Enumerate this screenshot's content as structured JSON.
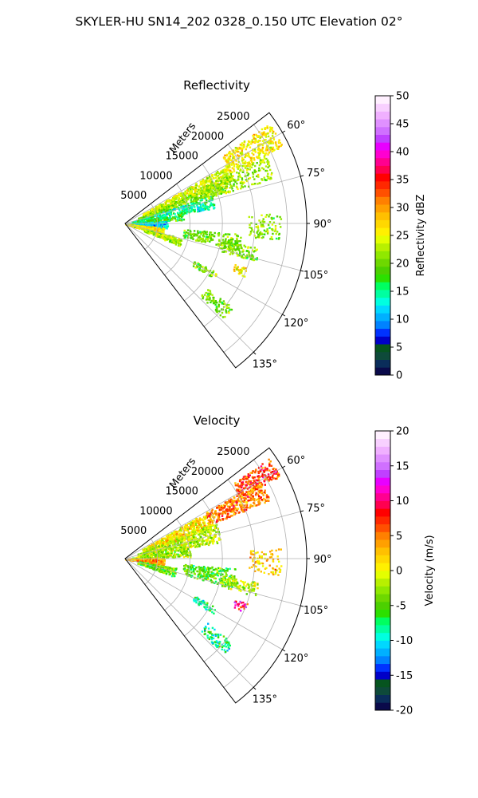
{
  "figure": {
    "suptitle": "SKYLER-HU  SN14_202  0328_0.150 UTC Elevation 02°"
  },
  "chart_data": [
    {
      "type": "polar-sector-radar",
      "title": "Reflectivity",
      "radial_axis_label": "Meters",
      "radial_ticks": [
        "5000",
        "10000",
        "15000",
        "20000",
        "25000"
      ],
      "radial_tick_values": [
        5000,
        10000,
        15000,
        20000,
        25000
      ],
      "r_max": 28000,
      "azimuth_range_deg": [
        52.5,
        142.5
      ],
      "azimuth_ticks": [
        "60°",
        "75°",
        "90°",
        "105°",
        "120°",
        "135°"
      ],
      "azimuth_tick_values": [
        60,
        75,
        90,
        105,
        120,
        135
      ],
      "grid": true,
      "colorbar": {
        "label": "Reflectivity dBZ",
        "vmin": 0,
        "vmax": 50,
        "ticks": [
          "0",
          "5",
          "10",
          "15",
          "20",
          "25",
          "30",
          "35",
          "40",
          "45",
          "50"
        ],
        "tick_values": [
          0,
          5,
          10,
          15,
          20,
          25,
          30,
          35,
          40,
          45,
          50
        ],
        "colors": [
          "#0a0a4a",
          "#0a2d5a",
          "#0e4a3a",
          "#06541f",
          "#0000c8",
          "#0032ff",
          "#0082ff",
          "#00b0ff",
          "#00d8ff",
          "#00ffe0",
          "#00ffa0",
          "#00ff60",
          "#2ce000",
          "#4cd000",
          "#6ed800",
          "#90e800",
          "#b8f000",
          "#e4ff00",
          "#fff000",
          "#ffd800",
          "#ffc000",
          "#ffa000",
          "#ff8000",
          "#ff5000",
          "#ff2800",
          "#ff0000",
          "#ff0050",
          "#ff0090",
          "#ff00d0",
          "#e800ff",
          "#c040ff",
          "#d070ff",
          "#e090ff",
          "#f0b0ff",
          "#f8d0ff",
          "#fff0ff"
        ]
      },
      "echo_regions": [
        {
          "az": [
            55,
            64
          ],
          "r": [
            18000,
            27000
          ],
          "value": 26,
          "density": 0.75
        },
        {
          "az": [
            60,
            68
          ],
          "r": [
            3000,
            18000
          ],
          "value": 24,
          "density": 0.85
        },
        {
          "az": [
            66,
            72
          ],
          "r": [
            2000,
            16000
          ],
          "value": 21,
          "density": 0.6
        },
        {
          "az": [
            72,
            80
          ],
          "r": [
            1000,
            14000
          ],
          "value": 15,
          "density": 0.6
        },
        {
          "az": [
            80,
            86
          ],
          "r": [
            1000,
            9000
          ],
          "value": 18,
          "density": 0.55
        },
        {
          "az": [
            86,
            96
          ],
          "r": [
            0,
            6500
          ],
          "value": 12,
          "density": 0.7
        },
        {
          "az": [
            96,
            108
          ],
          "r": [
            0,
            6000
          ],
          "value": 26,
          "density": 0.8
        },
        {
          "az": [
            104,
            112
          ],
          "r": [
            3000,
            9000
          ],
          "value": 22,
          "density": 0.75
        },
        {
          "az": [
            95,
            103
          ],
          "r": [
            9000,
            18000
          ],
          "value": 20,
          "density": 0.5
        },
        {
          "az": [
            100,
            106
          ],
          "r": [
            15000,
            21000
          ],
          "value": 21,
          "density": 0.6
        },
        {
          "az": [
            110,
            114
          ],
          "r": [
            18000,
            20000
          ],
          "value": 26,
          "density": 0.7
        },
        {
          "az": [
            118,
            122
          ],
          "r": [
            12000,
            16000
          ],
          "value": 20,
          "density": 0.6
        },
        {
          "az": [
            128,
            134
          ],
          "r": [
            16000,
            21000
          ],
          "value": 20,
          "density": 0.55
        },
        {
          "az": [
            86,
            96
          ],
          "r": [
            19000,
            24000
          ],
          "value": 21,
          "density": 0.35
        },
        {
          "az": [
            64,
            73
          ],
          "r": [
            13000,
            24000
          ],
          "value": 22,
          "density": 0.5
        }
      ]
    },
    {
      "type": "polar-sector-radar",
      "title": "Velocity",
      "radial_axis_label": "Meters",
      "radial_ticks": [
        "5000",
        "10000",
        "15000",
        "20000",
        "25000"
      ],
      "radial_tick_values": [
        5000,
        10000,
        15000,
        20000,
        25000
      ],
      "r_max": 28000,
      "azimuth_range_deg": [
        52.5,
        142.5
      ],
      "azimuth_ticks": [
        "60°",
        "75°",
        "90°",
        "105°",
        "120°",
        "135°"
      ],
      "azimuth_tick_values": [
        60,
        75,
        90,
        105,
        120,
        135
      ],
      "grid": true,
      "colorbar": {
        "label": "Velocity (m/s)",
        "vmin": -20,
        "vmax": 20,
        "ticks": [
          "-20",
          "-15",
          "-10",
          "-5",
          "0",
          "5",
          "10",
          "15",
          "20"
        ],
        "tick_values": [
          -20,
          -15,
          -10,
          -5,
          0,
          5,
          10,
          15,
          20
        ],
        "colors": [
          "#0a0a4a",
          "#0a2d5a",
          "#0e4a3a",
          "#06541f",
          "#0000c8",
          "#0032ff",
          "#0082ff",
          "#00b0ff",
          "#00d8ff",
          "#00ffe0",
          "#00ffa0",
          "#00ff60",
          "#2ce000",
          "#4cd000",
          "#6ed800",
          "#90e800",
          "#b8f000",
          "#e4ff00",
          "#fff000",
          "#ffd800",
          "#ffc000",
          "#ffa000",
          "#ff8000",
          "#ff5000",
          "#ff2800",
          "#ff0000",
          "#ff0050",
          "#ff0090",
          "#ff00d0",
          "#e800ff",
          "#c040ff",
          "#d070ff",
          "#e090ff",
          "#f0b0ff",
          "#f8d0ff",
          "#fff0ff"
        ]
      },
      "echo_regions": [
        {
          "az": [
            55,
            62
          ],
          "r": [
            20000,
            27000
          ],
          "value": 7,
          "density": 0.8
        },
        {
          "az": [
            60,
            68
          ],
          "r": [
            14000,
            24000
          ],
          "value": 5,
          "density": 0.8
        },
        {
          "az": [
            60,
            70
          ],
          "r": [
            3000,
            14000
          ],
          "value": 1,
          "density": 0.8
        },
        {
          "az": [
            68,
            80
          ],
          "r": [
            2000,
            15000
          ],
          "value": -2,
          "density": 0.6
        },
        {
          "az": [
            80,
            88
          ],
          "r": [
            1000,
            10000
          ],
          "value": -3,
          "density": 0.55
        },
        {
          "az": [
            88,
            100
          ],
          "r": [
            0,
            6000
          ],
          "value": 4,
          "density": 0.8
        },
        {
          "az": [
            100,
            110
          ],
          "r": [
            2000,
            8000
          ],
          "value": -4,
          "density": 0.75
        },
        {
          "az": [
            95,
            105
          ],
          "r": [
            9000,
            17000
          ],
          "value": -5,
          "density": 0.55
        },
        {
          "az": [
            100,
            106
          ],
          "r": [
            15000,
            21000
          ],
          "value": -2,
          "density": 0.6
        },
        {
          "az": [
            110,
            114
          ],
          "r": [
            18000,
            20000
          ],
          "value": 10,
          "density": 0.6
        },
        {
          "az": [
            118,
            122
          ],
          "r": [
            12000,
            16000
          ],
          "value": -8,
          "density": 0.6
        },
        {
          "az": [
            128,
            134
          ],
          "r": [
            16000,
            21000
          ],
          "value": -8,
          "density": 0.55
        },
        {
          "az": [
            86,
            96
          ],
          "r": [
            19000,
            24000
          ],
          "value": 2,
          "density": 0.35
        }
      ]
    }
  ]
}
